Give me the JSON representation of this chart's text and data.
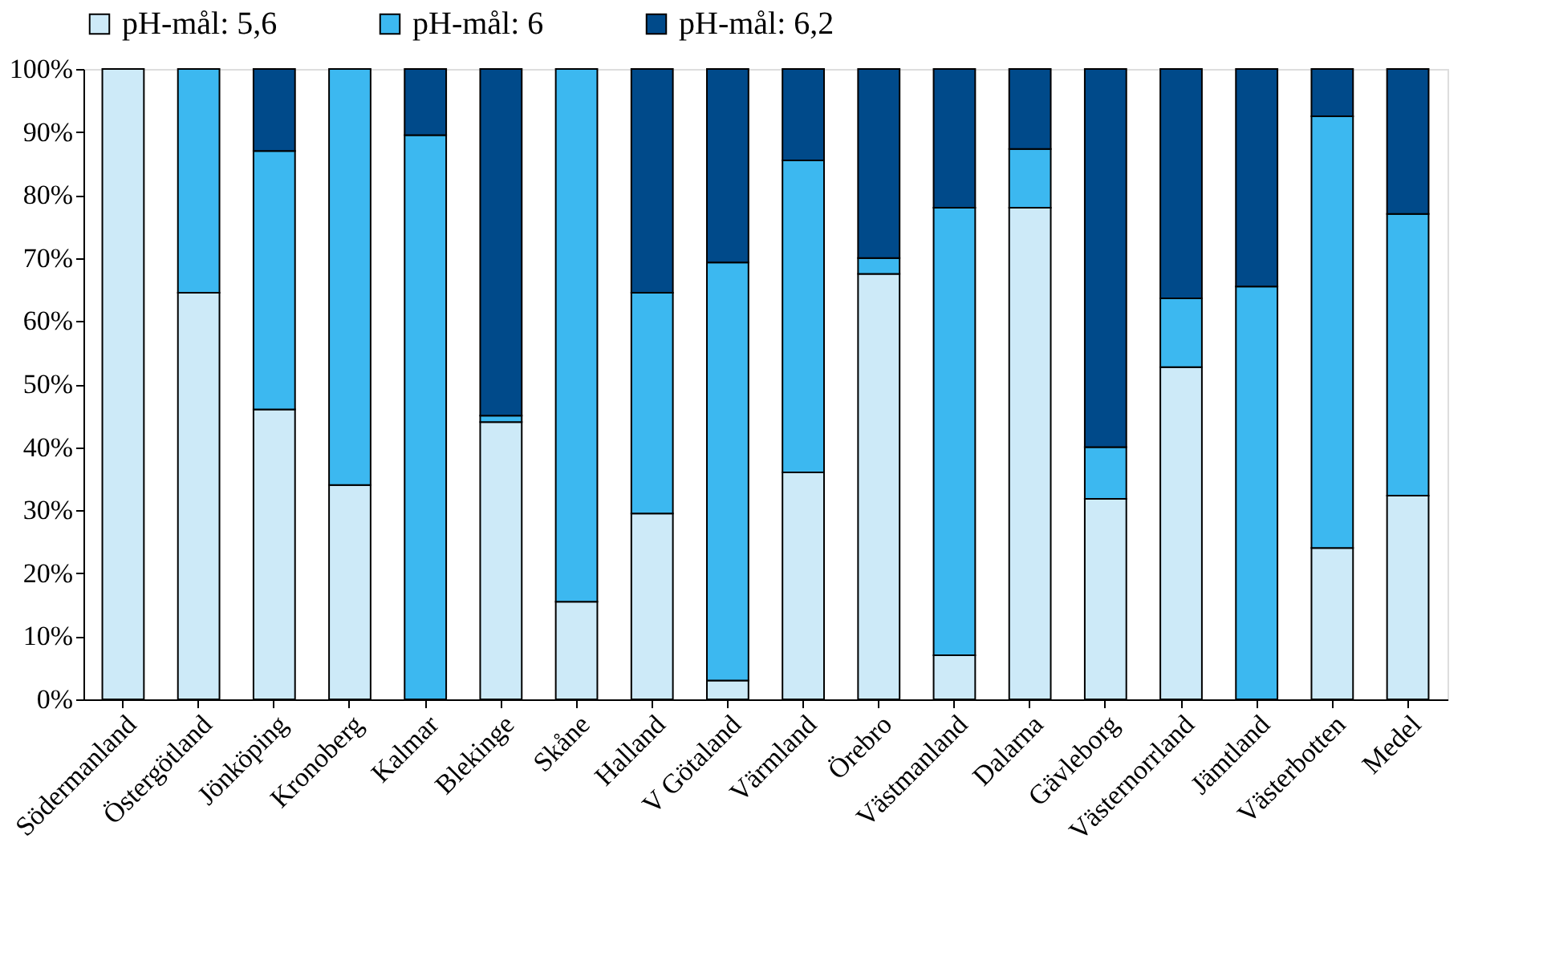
{
  "chart_data": {
    "type": "bar",
    "stacked": true,
    "legend": "top",
    "grid": false,
    "categories": [
      "Södermanland",
      "Östergötland",
      "Jönköping",
      "Kronoberg",
      "Kalmar",
      "Blekinge",
      "Skåne",
      "Halland",
      "V Götaland",
      "Värmland",
      "Örebro",
      "Västmanland",
      "Dalarna",
      "Gävleborg",
      "Västernorrland",
      "Jämtland",
      "Västerbotten",
      "Medel"
    ],
    "series": [
      {
        "name": "pH-mål: 5,6",
        "color": "#cdeaf8",
        "values": [
          100,
          64.5,
          46,
          34,
          0,
          44,
          15.5,
          29.5,
          3,
          36,
          67.5,
          7,
          78,
          31.8,
          52.7,
          0,
          24,
          32.3
        ]
      },
      {
        "name": "pH-mål: 6",
        "color": "#3cb8f0",
        "values": [
          0,
          35.5,
          41,
          66,
          89.5,
          1,
          84.5,
          35,
          66.3,
          49.5,
          2.5,
          71,
          9.3,
          8.2,
          10.9,
          65.5,
          68.5,
          44.7
        ]
      },
      {
        "name": "pH-mål: 6,2",
        "color": "#004a8a",
        "values": [
          0,
          0,
          13,
          0,
          10.5,
          55,
          0,
          35.5,
          30.7,
          14.5,
          30,
          22,
          12.7,
          60,
          36.4,
          34.5,
          7.5,
          23
        ]
      }
    ],
    "ylim": [
      0,
      100
    ],
    "yticks": [
      {
        "value": 0,
        "label": "0%"
      },
      {
        "value": 10,
        "label": "10%"
      },
      {
        "value": 20,
        "label": "20%"
      },
      {
        "value": 30,
        "label": "30%"
      },
      {
        "value": 40,
        "label": "40%"
      },
      {
        "value": 50,
        "label": "50%"
      },
      {
        "value": 60,
        "label": "60%"
      },
      {
        "value": 70,
        "label": "70%"
      },
      {
        "value": 80,
        "label": "80%"
      },
      {
        "value": 90,
        "label": "90%"
      },
      {
        "value": 100,
        "label": "100%"
      }
    ]
  }
}
